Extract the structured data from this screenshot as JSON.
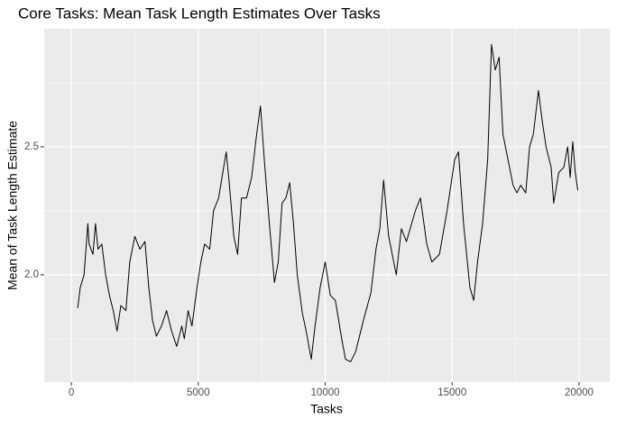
{
  "chart_data": {
    "type": "line",
    "title": "Core Tasks: Mean Task Length Estimates Over Tasks",
    "x_label": "Tasks",
    "y_label": "Mean of Task Length Estimate",
    "xlim": [
      -1070,
      21210
    ],
    "xticks": [
      0,
      5000,
      10000,
      15000,
      20000
    ],
    "ylim": [
      1.581,
      2.961
    ],
    "yticks": [
      {
        "value": 2.0,
        "label": "2.0"
      },
      2.5
    ],
    "grid": true,
    "series": [
      {
        "color": "#000000",
        "x": [
          250,
          350,
          500,
          650,
          700,
          850,
          950,
          1050,
          1200,
          1350,
          1500,
          1650,
          1800,
          1950,
          2150,
          2300,
          2500,
          2700,
          2900,
          3050,
          3200,
          3350,
          3550,
          3750,
          3950,
          4150,
          4350,
          4450,
          4600,
          4750,
          4950,
          5100,
          5250,
          5450,
          5600,
          5800,
          6000,
          6100,
          6200,
          6400,
          6550,
          6700,
          6900,
          7100,
          7300,
          7450,
          7600,
          7800,
          8000,
          8150,
          8300,
          8450,
          8600,
          8750,
          8900,
          9100,
          9250,
          9450,
          9600,
          9800,
          10000,
          10200,
          10400,
          10650,
          10800,
          11000,
          11200,
          11500,
          11800,
          12000,
          12150,
          12300,
          12500,
          12800,
          13000,
          13200,
          13550,
          13750,
          14000,
          14200,
          14500,
          14800,
          15100,
          15250,
          15450,
          15700,
          15850,
          16000,
          16200,
          16400,
          16550,
          16700,
          16850,
          17000,
          17200,
          17400,
          17550,
          17700,
          17900,
          18050,
          18200,
          18400,
          18550,
          18700,
          18900,
          19000,
          19200,
          19400,
          19550,
          19650,
          19750,
          19850,
          19950
        ],
        "values": [
          1.87,
          1.95,
          2.0,
          2.2,
          2.12,
          2.08,
          2.2,
          2.1,
          2.12,
          2.0,
          1.92,
          1.86,
          1.78,
          1.88,
          1.86,
          2.05,
          2.15,
          2.1,
          2.13,
          1.95,
          1.82,
          1.76,
          1.8,
          1.86,
          1.78,
          1.72,
          1.8,
          1.75,
          1.86,
          1.8,
          1.95,
          2.05,
          2.12,
          2.1,
          2.25,
          2.3,
          2.42,
          2.48,
          2.38,
          2.15,
          2.08,
          2.3,
          2.3,
          2.38,
          2.55,
          2.66,
          2.45,
          2.2,
          1.97,
          2.05,
          2.28,
          2.3,
          2.36,
          2.2,
          2.0,
          1.85,
          1.78,
          1.67,
          1.8,
          1.95,
          2.05,
          1.92,
          1.9,
          1.75,
          1.67,
          1.66,
          1.7,
          1.82,
          1.93,
          2.1,
          2.18,
          2.37,
          2.15,
          2.0,
          2.18,
          2.13,
          2.25,
          2.3,
          2.12,
          2.05,
          2.08,
          2.25,
          2.45,
          2.48,
          2.2,
          1.95,
          1.9,
          2.05,
          2.2,
          2.45,
          2.9,
          2.8,
          2.85,
          2.55,
          2.45,
          2.35,
          2.32,
          2.35,
          2.32,
          2.5,
          2.55,
          2.72,
          2.6,
          2.5,
          2.42,
          2.28,
          2.4,
          2.42,
          2.5,
          2.38,
          2.52,
          2.4,
          2.33
        ]
      }
    ]
  }
}
